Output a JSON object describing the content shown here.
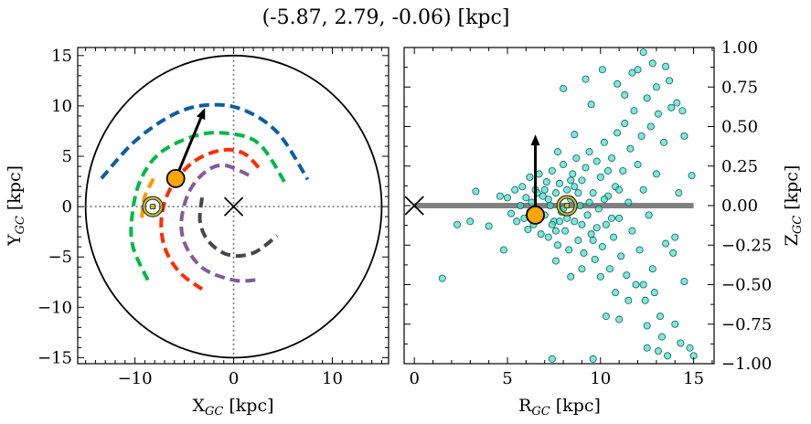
{
  "title": "(-5.87, 2.79, -0.06) [kpc]",
  "chart_data": [
    {
      "type": "line",
      "panel": "left",
      "xlabel": {
        "main": "X",
        "sub": "GC",
        "unit": " [kpc]"
      },
      "ylabel": {
        "main": "Y",
        "sub": "GC",
        "unit": " [kpc]"
      },
      "xlim": [
        -15.8,
        15.7
      ],
      "ylim": [
        -15.6,
        15.8
      ],
      "xticks": [
        -10,
        0,
        10
      ],
      "yticks": [
        -15,
        -10,
        -5,
        0,
        5,
        10,
        15
      ],
      "boundary_circle_radius": 15,
      "galactic_center": [
        0,
        0
      ],
      "sun": [
        -8.2,
        0
      ],
      "object": [
        -5.87,
        2.79
      ],
      "velocity_arrow_tip": [
        -2.9,
        9.8
      ],
      "orbit_arcs": [
        {
          "color": "#0c5da5",
          "points": [
            [
              -13.4,
              2.8
            ],
            [
              -10,
              6.5
            ],
            [
              -6,
              9.2
            ],
            [
              -2.5,
              10.1
            ],
            [
              1,
              9.6
            ],
            [
              4.5,
              7.3
            ],
            [
              7.5,
              2.7
            ]
          ]
        },
        {
          "color": "#00b945",
          "points": [
            [
              -8.7,
              -7.3
            ],
            [
              -10.2,
              -4
            ],
            [
              -10.3,
              -1
            ],
            [
              -9.5,
              2.5
            ],
            [
              -7.5,
              5.3
            ],
            [
              -4,
              7
            ],
            [
              -0.9,
              7.3
            ],
            [
              2.5,
              6.3
            ],
            [
              5.2,
              2.4
            ]
          ]
        },
        {
          "color": "#ff2c00",
          "points": [
            [
              -3.2,
              -8.2
            ],
            [
              -5.5,
              -6.5
            ],
            [
              -7,
              -4
            ],
            [
              -7.3,
              -1
            ],
            [
              -6.3,
              2
            ],
            [
              -4,
              4.5
            ],
            [
              -1.2,
              5.6
            ],
            [
              1,
              5.3
            ],
            [
              2.7,
              3.7
            ]
          ]
        },
        {
          "color": "#845b97",
          "points": [
            [
              2.2,
              -7.3
            ],
            [
              0,
              -7.3
            ],
            [
              -3,
              -6.2
            ],
            [
              -4.8,
              -4
            ],
            [
              -5.3,
              -1.5
            ],
            [
              -4.5,
              1.5
            ],
            [
              -2.8,
              3.5
            ],
            [
              -0.9,
              4.1
            ],
            [
              1.6,
              3.1
            ]
          ]
        },
        {
          "color": "#474747",
          "points": [
            [
              -3.2,
              0.9
            ],
            [
              -3.4,
              -1.5
            ],
            [
              -2.5,
              -3.5
            ],
            [
              -0.5,
              -4.8
            ],
            [
              2,
              -4.6
            ],
            [
              4.4,
              -2.9
            ]
          ]
        },
        {
          "color": "#ff9500",
          "points": [
            [
              -9.3,
              -1.1
            ],
            [
              -9,
              1
            ],
            [
              -8,
              3
            ]
          ]
        }
      ]
    },
    {
      "type": "scatter",
      "panel": "right",
      "xlabel": {
        "main": "R",
        "sub": "GC",
        "unit": " [kpc]"
      },
      "ylabel": {
        "main": "Z",
        "sub": "GC",
        "unit": " [kpc]"
      },
      "xlim": [
        -0.55,
        16.1
      ],
      "ylim": [
        -1.0,
        1.0
      ],
      "xticks": [
        0,
        5,
        10,
        15
      ],
      "yticks": [
        "-1.00",
        "-0.75",
        "-0.50",
        "-0.25",
        "0.00",
        "0.25",
        "0.50",
        "0.75",
        "1.00"
      ],
      "disk_line": [
        [
          0,
          0
        ],
        [
          15,
          0
        ]
      ],
      "galactic_center": [
        0,
        0
      ],
      "sun": [
        8.2,
        0
      ],
      "object": [
        6.5,
        -0.06
      ],
      "velocity_arrow_tip": [
        6.5,
        0.45
      ],
      "point_color": "#40e0d0",
      "points": [
        [
          5.0,
          0.05
        ],
        [
          5.2,
          -0.05
        ],
        [
          5.4,
          0.1
        ],
        [
          5.5,
          -0.1
        ],
        [
          5.7,
          0.0
        ],
        [
          5.8,
          0.12
        ],
        [
          5.9,
          -0.08
        ],
        [
          6.0,
          0.05
        ],
        [
          6.1,
          -0.15
        ],
        [
          6.2,
          0.18
        ],
        [
          6.3,
          0.02
        ],
        [
          6.4,
          -0.12
        ],
        [
          6.5,
          0.1
        ],
        [
          6.6,
          -0.02
        ],
        [
          6.7,
          0.2
        ],
        [
          6.8,
          -0.18
        ],
        [
          6.9,
          0.06
        ],
        [
          7.0,
          -0.06
        ],
        [
          7.1,
          0.15
        ],
        [
          7.2,
          -0.2
        ],
        [
          7.3,
          0.0
        ],
        [
          7.4,
          0.22
        ],
        [
          7.5,
          -0.1
        ],
        [
          7.6,
          0.08
        ],
        [
          7.7,
          -0.25
        ],
        [
          7.8,
          0.14
        ],
        [
          7.9,
          -0.04
        ],
        [
          8.0,
          0.26
        ],
        [
          8.1,
          -0.16
        ],
        [
          8.2,
          0.1
        ],
        [
          8.3,
          -0.28
        ],
        [
          8.4,
          0.04
        ],
        [
          8.5,
          0.2
        ],
        [
          8.6,
          -0.1
        ],
        [
          8.7,
          0.3
        ],
        [
          8.8,
          -0.22
        ],
        [
          8.9,
          0.0
        ],
        [
          9.0,
          0.16
        ],
        [
          9.1,
          -0.3
        ],
        [
          9.2,
          0.24
        ],
        [
          9.3,
          -0.06
        ],
        [
          9.4,
          0.34
        ],
        [
          9.5,
          -0.18
        ],
        [
          9.6,
          0.08
        ],
        [
          9.7,
          -0.34
        ],
        [
          9.8,
          0.28
        ],
        [
          9.9,
          -0.02
        ],
        [
          10.0,
          0.18
        ],
        [
          10.1,
          -0.26
        ],
        [
          10.2,
          0.4
        ],
        [
          10.3,
          -0.12
        ],
        [
          10.4,
          0.06
        ],
        [
          10.5,
          -0.4
        ],
        [
          10.6,
          0.3
        ],
        [
          10.7,
          -0.2
        ],
        [
          10.8,
          0.12
        ],
        [
          10.9,
          0.46
        ],
        [
          11.0,
          -0.08
        ],
        [
          11.1,
          -0.32
        ],
        [
          11.2,
          0.22
        ],
        [
          11.3,
          0.52
        ],
        [
          11.4,
          -0.44
        ],
        [
          11.5,
          0.02
        ],
        [
          11.6,
          0.36
        ],
        [
          11.7,
          -0.16
        ],
        [
          11.8,
          0.6
        ],
        [
          11.9,
          -0.5
        ],
        [
          12.0,
          0.26
        ],
        [
          12.1,
          -0.28
        ],
        [
          12.2,
          0.44
        ],
        [
          12.3,
          0.1
        ],
        [
          12.4,
          -0.6
        ],
        [
          12.5,
          0.68
        ],
        [
          12.6,
          -0.06
        ],
        [
          12.7,
          0.5
        ],
        [
          12.8,
          -0.4
        ],
        [
          13.0,
          0.2
        ],
        [
          13.1,
          0.58
        ],
        [
          13.2,
          -0.7
        ],
        [
          13.4,
          0.4
        ],
        [
          13.5,
          -0.24
        ],
        [
          13.8,
          0.62
        ],
        [
          14.0,
          -0.2
        ],
        [
          14.2,
          0.08
        ],
        [
          14.5,
          0.44
        ],
        [
          6.2,
          -0.04
        ],
        [
          6.6,
          0.08
        ],
        [
          7.0,
          0.1
        ],
        [
          7.4,
          -0.12
        ],
        [
          7.8,
          -0.1
        ],
        [
          8.2,
          -0.08
        ],
        [
          8.6,
          0.12
        ],
        [
          9.0,
          -0.12
        ],
        [
          9.4,
          0.02
        ],
        [
          9.8,
          -0.14
        ],
        [
          10.2,
          0.04
        ],
        [
          10.6,
          -0.08
        ],
        [
          7.2,
          0.04
        ],
        [
          8.0,
          -0.02
        ],
        [
          8.8,
          0.08
        ],
        [
          9.6,
          -0.22
        ],
        [
          10.4,
          0.22
        ],
        [
          11.0,
          0.1
        ],
        [
          7.6,
          -0.16
        ],
        [
          8.4,
          0.16
        ],
        [
          1.5,
          -0.46
        ],
        [
          2.3,
          -0.12
        ],
        [
          3.0,
          -0.1
        ],
        [
          3.3,
          0.09
        ],
        [
          4.0,
          -0.13
        ],
        [
          4.6,
          0.06
        ],
        [
          4.8,
          -0.28
        ],
        [
          8.0,
          0.74
        ],
        [
          9.2,
          0.8
        ],
        [
          10.1,
          0.86
        ],
        [
          10.9,
          0.77
        ],
        [
          12.3,
          0.97
        ],
        [
          11.7,
          0.84
        ],
        [
          12.8,
          0.9
        ],
        [
          7.4,
          -0.97
        ],
        [
          9.6,
          -0.97
        ],
        [
          10.3,
          -0.7
        ],
        [
          11.0,
          -0.72
        ],
        [
          12.5,
          -0.9
        ],
        [
          13.1,
          -0.92
        ],
        [
          13.6,
          -0.95
        ],
        [
          14.3,
          -0.87
        ],
        [
          14.8,
          -0.9
        ],
        [
          15.0,
          -0.95
        ],
        [
          14.0,
          -0.75
        ],
        [
          13.3,
          -0.83
        ],
        [
          12.5,
          -0.76
        ],
        [
          14.5,
          -0.48
        ],
        [
          13.9,
          -0.3
        ],
        [
          12.9,
          -0.55
        ],
        [
          13.7,
          0.79
        ],
        [
          14.1,
          0.65
        ],
        [
          13.0,
          0.75
        ],
        [
          9.5,
          0.64
        ],
        [
          8.6,
          0.45
        ],
        [
          7.7,
          0.34
        ],
        [
          14.9,
          0.19
        ],
        [
          14.4,
          0.6
        ],
        [
          12.0,
          0.86
        ],
        [
          13.5,
          0.88
        ],
        [
          11.3,
          0.7
        ],
        [
          12.3,
          -0.5
        ],
        [
          11.5,
          -0.6
        ],
        [
          10.0,
          -0.45
        ],
        [
          9.0,
          -0.4
        ],
        [
          8.4,
          -0.45
        ],
        [
          7.6,
          -0.35
        ],
        [
          10.8,
          -0.55
        ]
      ]
    }
  ]
}
